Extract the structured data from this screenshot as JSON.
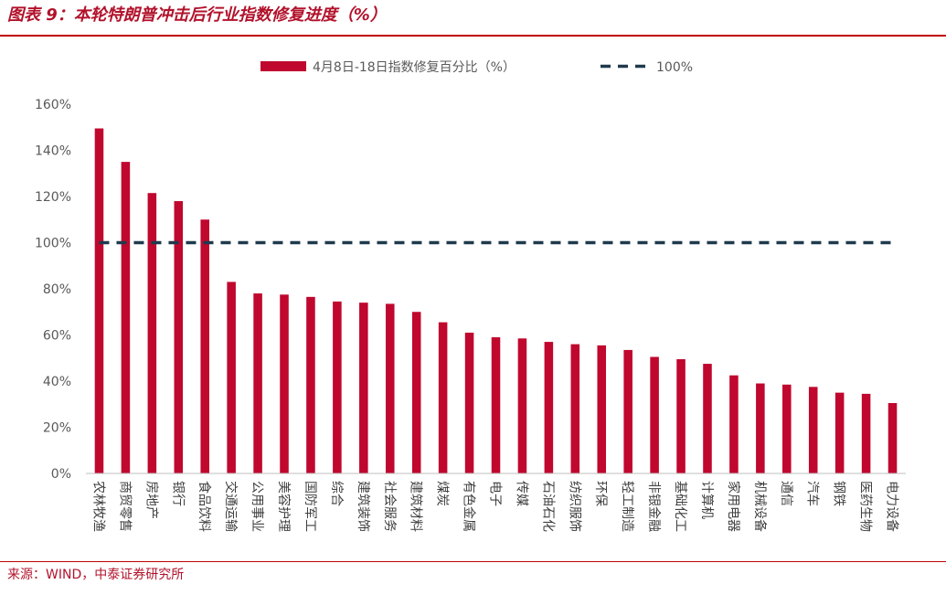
{
  "figure": {
    "title": "图表 9：本轮特朗普冲击后行业指数修复进度（%）",
    "source": "来源：WIND，中泰证券研究所"
  },
  "colors": {
    "bar": "#c0072e",
    "ref_line": "#1f3a4d",
    "rule": "#c00000"
  },
  "chart_data": {
    "type": "bar",
    "categories": [
      "农林牧渔",
      "商贸零售",
      "房地产",
      "银行",
      "食品饮料",
      "交通运输",
      "公用事业",
      "美容护理",
      "国防军工",
      "综合",
      "建筑装饰",
      "社会服务",
      "建筑材料",
      "煤炭",
      "有色金属",
      "电子",
      "传媒",
      "石油石化",
      "纺织服饰",
      "环保",
      "轻工制造",
      "非银金融",
      "基础化工",
      "计算机",
      "家用电器",
      "机械设备",
      "通信",
      "汽车",
      "钢铁",
      "医药生物",
      "电力设备"
    ],
    "series": [
      {
        "name": "4月8日-18日指数修复百分比（%）",
        "values": [
          149.5,
          135,
          121.5,
          118,
          110,
          83,
          78,
          77.5,
          76.5,
          74.5,
          74,
          73.5,
          70,
          65.5,
          61,
          59,
          58.5,
          57,
          56,
          55.5,
          53.5,
          50.5,
          49.5,
          47.5,
          42.5,
          39,
          38.5,
          37.5,
          35,
          34.5,
          30.5
        ]
      }
    ],
    "reference_line": {
      "name": "100%",
      "value": 100
    },
    "ylim": [
      0,
      160
    ],
    "yticks": [
      "0%",
      "20%",
      "40%",
      "60%",
      "80%",
      "100%",
      "120%",
      "140%",
      "160%"
    ],
    "legend_position": "top-center",
    "grid": false
  }
}
